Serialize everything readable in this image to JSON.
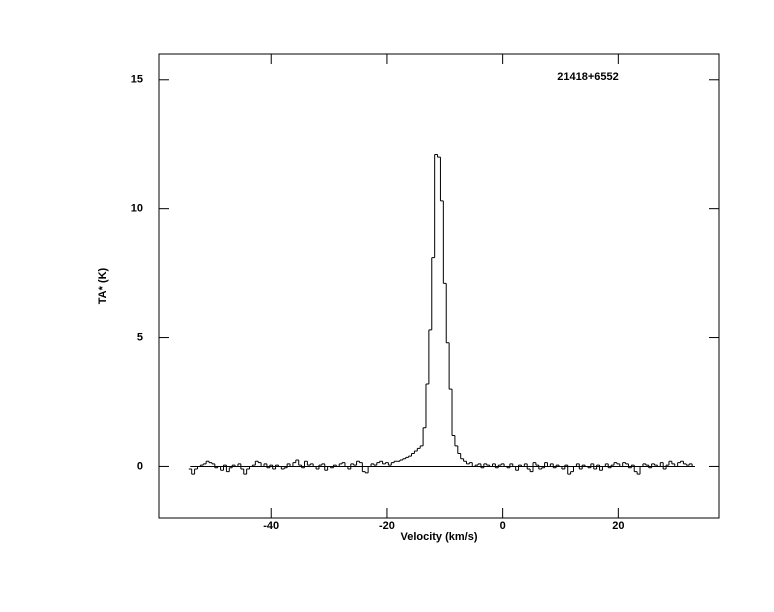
{
  "chart_data": {
    "type": "step",
    "annotation": "21418+6552",
    "xlabel": "Velocity (km/s)",
    "ylabel": "TA* (K)",
    "color": "#000000",
    "zero_line": true,
    "xlim": [
      -59.4,
      37.4
    ],
    "ylim": [
      -2,
      16
    ],
    "xticks": [
      -40,
      -20,
      0,
      20
    ],
    "yticks": [
      0,
      5,
      10,
      15
    ],
    "x": [
      -54,
      -53.5,
      -53,
      -52.5,
      -52,
      -51.5,
      -51,
      -50.5,
      -50,
      -49.5,
      -49,
      -48.5,
      -48,
      -47.5,
      -47,
      -46.5,
      -46,
      -45.5,
      -45,
      -44.5,
      -44,
      -43.5,
      -43,
      -42.5,
      -42,
      -41.5,
      -41,
      -40.5,
      -40,
      -39.5,
      -39,
      -38.5,
      -38,
      -37.5,
      -37,
      -36.5,
      -36,
      -35.5,
      -35,
      -34.5,
      -34,
      -33.5,
      -33,
      -32.5,
      -32,
      -31.5,
      -31,
      -30.5,
      -30,
      -29.5,
      -29,
      -28.5,
      -28,
      -27.5,
      -27,
      -26.5,
      -26,
      -25.5,
      -25,
      -24.5,
      -24,
      -23.5,
      -23,
      -22.5,
      -22,
      -21.5,
      -21,
      -20.5,
      -20,
      -19.5,
      -19,
      -18.5,
      -18,
      -17.5,
      -17,
      -16.5,
      -16,
      -15.5,
      -15,
      -14.5,
      -14,
      -13.5,
      -13,
      -12.5,
      -12,
      -11.5,
      -11,
      -10.5,
      -10,
      -9.5,
      -9,
      -8.5,
      -8,
      -7.5,
      -7,
      -6.5,
      -6,
      -5.5,
      -5,
      -4.5,
      -4,
      -3.5,
      -3,
      -2.5,
      -2,
      -1.5,
      -1,
      -0.5,
      0,
      0.5,
      1,
      1.5,
      2,
      2.5,
      3,
      3.5,
      4,
      4.5,
      5,
      5.5,
      6,
      6.5,
      7,
      7.5,
      8,
      8.5,
      9,
      9.5,
      10,
      10.5,
      11,
      11.5,
      12,
      12.5,
      13,
      13.5,
      14,
      14.5,
      15,
      15.5,
      16,
      16.5,
      17,
      17.5,
      18,
      18.5,
      19,
      19.5,
      20,
      20.5,
      21,
      21.5,
      22,
      22.5,
      23,
      23.5,
      24,
      24.5,
      25,
      25.5,
      26,
      26.5,
      27,
      27.5,
      28,
      28.5,
      29,
      29.5,
      30,
      30.5,
      31,
      31.5,
      32,
      32.5,
      33
    ],
    "values": [
      -0.1,
      -0.3,
      -0.1,
      0.0,
      0.05,
      0.1,
      0.2,
      0.15,
      0.1,
      -0.05,
      0.0,
      -0.15,
      0.05,
      -0.2,
      -0.05,
      0.05,
      0.0,
      0.1,
      -0.1,
      -0.3,
      -0.1,
      0.0,
      0.05,
      0.2,
      0.15,
      0.0,
      0.1,
      -0.05,
      0.05,
      -0.1,
      0.05,
      0.0,
      -0.1,
      -0.05,
      0.1,
      0.0,
      0.15,
      0.25,
      0.05,
      -0.05,
      0.2,
      0.05,
      0.1,
      0.0,
      -0.1,
      0.05,
      0.1,
      -0.15,
      0.0,
      -0.05,
      0.05,
      0.0,
      0.1,
      0.15,
      0.0,
      -0.1,
      0.1,
      0.05,
      0.2,
      0.15,
      -0.2,
      -0.25,
      0.0,
      0.1,
      0.05,
      0.15,
      0.2,
      0.1,
      0.15,
      0.05,
      0.15,
      0.2,
      0.2,
      0.25,
      0.3,
      0.35,
      0.4,
      0.5,
      0.6,
      0.7,
      0.8,
      1.5,
      3.2,
      5.3,
      8.1,
      12.1,
      12.0,
      10.3,
      7.1,
      4.8,
      3.0,
      1.2,
      0.8,
      0.5,
      0.3,
      0.2,
      0.1,
      0.15,
      0.0,
      0.05,
      0.1,
      -0.05,
      0.1,
      0.05,
      0.0,
      0.1,
      -0.05,
      0.05,
      0.1,
      0.0,
      -0.05,
      0.1,
      0.0,
      -0.15,
      0.05,
      0.0,
      0.1,
      -0.1,
      -0.2,
      0.15,
      0.05,
      -0.1,
      -0.05,
      0.15,
      0.0,
      0.1,
      -0.05,
      0.05,
      0.0,
      -0.1,
      0.05,
      -0.3,
      -0.2,
      0.0,
      0.1,
      -0.1,
      0.05,
      0.0,
      -0.05,
      0.1,
      -0.1,
      0.05,
      -0.15,
      0.0,
      0.1,
      -0.05,
      0.05,
      0.15,
      0.1,
      0.0,
      0.15,
      0.1,
      -0.05,
      0.05,
      -0.2,
      -0.3,
      0.0,
      0.1,
      0.05,
      -0.05,
      0.1,
      0.05,
      0.0,
      0.15,
      -0.1,
      0.05,
      0.2,
      0.1,
      0.0,
      0.15,
      0.2,
      0.1,
      0.05,
      0.1,
      0.0
    ]
  }
}
